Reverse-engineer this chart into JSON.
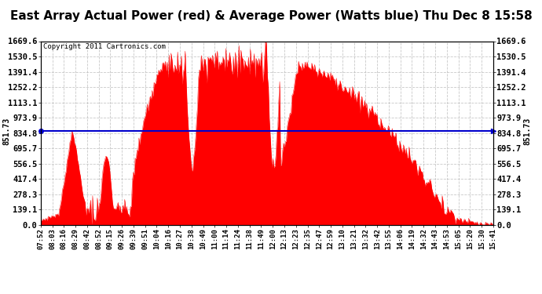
{
  "title": "East Array Actual Power (red) & Average Power (Watts blue) Thu Dec 8 15:58",
  "copyright": "Copyright 2011 Cartronics.com",
  "average_power": 851.73,
  "ylim": [
    0.0,
    1669.6
  ],
  "yticks": [
    0.0,
    139.1,
    278.3,
    417.4,
    556.5,
    695.7,
    834.8,
    973.9,
    1113.1,
    1252.2,
    1391.4,
    1530.5,
    1669.6
  ],
  "bg_color": "#ffffff",
  "plot_bg_color": "#ffffff",
  "grid_color": "#bbbbbb",
  "fill_color": "#ff0000",
  "line_color": "#0000cc",
  "title_fontsize": 11,
  "xtick_labels": [
    "07:52",
    "08:03",
    "08:16",
    "08:29",
    "08:42",
    "08:52",
    "09:15",
    "09:26",
    "09:39",
    "09:51",
    "10:04",
    "10:16",
    "10:27",
    "10:38",
    "10:49",
    "11:00",
    "11:14",
    "11:24",
    "11:38",
    "11:49",
    "12:00",
    "12:13",
    "12:23",
    "12:35",
    "12:47",
    "12:59",
    "13:10",
    "13:21",
    "13:32",
    "13:42",
    "13:55",
    "14:06",
    "14:19",
    "14:32",
    "14:43",
    "14:53",
    "15:05",
    "15:20",
    "15:30",
    "15:41"
  ]
}
